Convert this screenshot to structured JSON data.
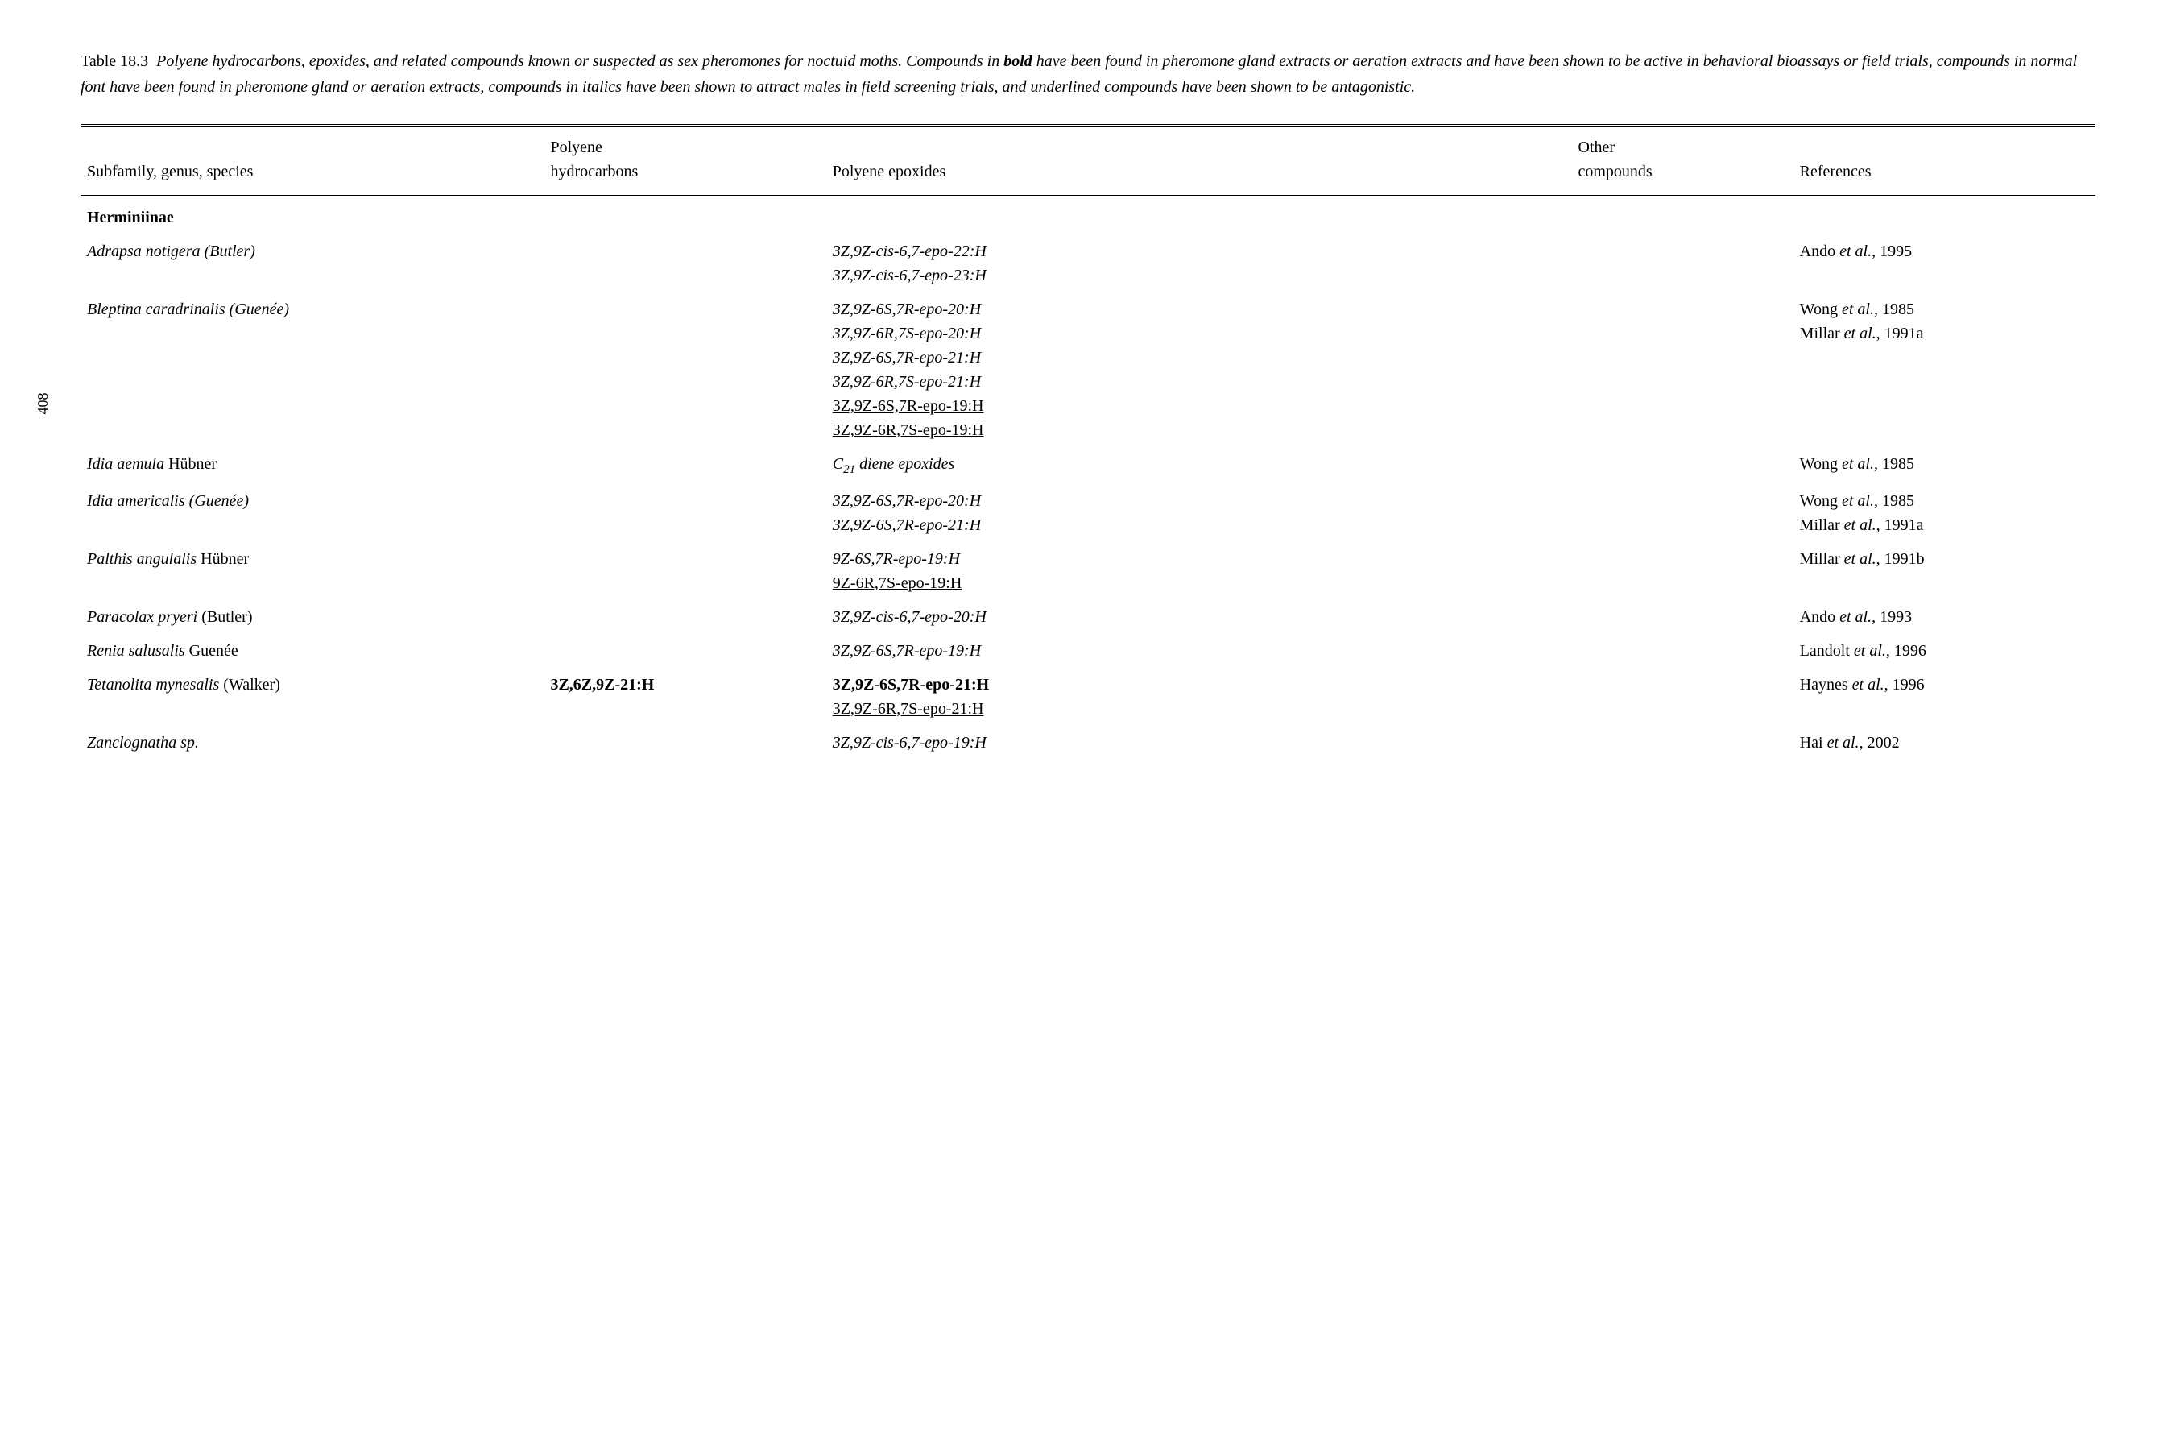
{
  "page_number": "408",
  "caption": {
    "table_label": "Table 18.3",
    "title_italic_1": "Polyene hydrocarbons, epoxides, and related compounds known or suspected as sex pheromones for noctuid moths. Compounds in ",
    "bold_word": "bold",
    "title_italic_2": " have been found in pheromone gland extracts or aeration extracts and have been shown to be active in behavioral bioassays or field trials, compounds in normal font have been found in pheromone gland or aeration extracts, compounds in italics have been shown to attract males in field screening trials, and underlined compounds have been shown to be antagonistic."
  },
  "columns": {
    "col1": "Subfamily, genus, species",
    "col2a": "Polyene",
    "col2b": "hydrocarbons",
    "col3": "Polyene epoxides",
    "col4a": "Other",
    "col4b": "compounds",
    "col5": "References"
  },
  "col_widths": [
    "23%",
    "14%",
    "37%",
    "11%",
    "15%"
  ],
  "subfamily": "Herminiinae",
  "rows": [
    {
      "species_markup": {
        "prefix": "",
        "ital": "Adrapsa notigera",
        "ital2": " (Butler)"
      },
      "hydro": "",
      "epoxides": [
        {
          "text": "3Z,9Z-cis-6,7-epo-22:H",
          "style": "ital"
        },
        {
          "text": "3Z,9Z-cis-6,7-epo-23:H",
          "style": "ital"
        }
      ],
      "other": "",
      "refs": [
        {
          "pre": "Ando ",
          "et": "et al.",
          "post": ", 1995"
        }
      ]
    },
    {
      "species_markup": {
        "prefix": "",
        "ital": "Bleptina caradrinalis",
        "ital2": " (Guenée)"
      },
      "hydro": "",
      "epoxides": [
        {
          "text": "3Z,9Z-6S,7R-epo-20:H",
          "style": "ital"
        },
        {
          "text": "3Z,9Z-6R,7S-epo-20:H",
          "style": "ital"
        },
        {
          "text": "3Z,9Z-6S,7R-epo-21:H",
          "style": "ital"
        },
        {
          "text": "3Z,9Z-6R,7S-epo-21:H",
          "style": "ital"
        },
        {
          "text": "3Z,9Z-6S,7R-epo-19:H",
          "style": "ul"
        },
        {
          "text": "3Z,9Z-6R,7S-epo-19:H",
          "style": "ul"
        }
      ],
      "other": "",
      "refs": [
        {
          "pre": "Wong ",
          "et": "et al.",
          "post": ", 1985"
        },
        {
          "pre": "Millar ",
          "et": "et al.",
          "post": ", 1991a"
        }
      ]
    },
    {
      "species_markup": {
        "prefix": "",
        "ital": "Idia aemula",
        "plain": " Hübner"
      },
      "hydro": "",
      "epoxides": [
        {
          "html": "<span class=\"sub\">C</span><span class=\"sub-num\">21</span><span class=\"ital\"> diene epoxides</span>",
          "raw": true
        }
      ],
      "other": "",
      "refs": [
        {
          "pre": "Wong ",
          "et": "et al.",
          "post": ", 1985"
        }
      ]
    },
    {
      "species_markup": {
        "prefix": "",
        "ital": "Idia americalis",
        "ital2": " (Guenée)"
      },
      "hydro": "",
      "epoxides": [
        {
          "text": "3Z,9Z-6S,7R-epo-20:H",
          "style": "ital"
        },
        {
          "text": "3Z,9Z-6S,7R-epo-21:H",
          "style": "ital"
        }
      ],
      "other": "",
      "refs": [
        {
          "pre": "Wong ",
          "et": "et al.",
          "post": ", 1985"
        },
        {
          "pre": "Millar ",
          "et": "et al.",
          "post": ", 1991a"
        }
      ]
    },
    {
      "species_markup": {
        "prefix": "",
        "ital": "Palthis angulalis",
        "plain": " Hübner"
      },
      "hydro": "",
      "epoxides": [
        {
          "text": "9Z-6S,7R-epo-19:H",
          "style": "ital"
        },
        {
          "text": "9Z-6R,7S-epo-19:H",
          "style": "ul"
        }
      ],
      "other": "",
      "refs": [
        {
          "pre": "Millar ",
          "et": "et al.",
          "post": ", 1991b"
        }
      ]
    },
    {
      "species_markup": {
        "prefix": "",
        "ital": "Paracolax pryeri",
        "plain": " (Butler)"
      },
      "hydro": "",
      "epoxides": [
        {
          "text": "3Z,9Z-cis-6,7-epo-20:H",
          "style": "ital"
        }
      ],
      "other": "",
      "refs": [
        {
          "pre": "Ando ",
          "et": "et al.",
          "post": ", 1993"
        }
      ]
    },
    {
      "species_markup": {
        "prefix": "",
        "ital": "Renia salusalis",
        "plain": " Guenée"
      },
      "hydro": "",
      "epoxides": [
        {
          "text": "3Z,9Z-6S,7R-epo-19:H",
          "style": "ital"
        }
      ],
      "other": "",
      "refs": [
        {
          "pre": "Landolt ",
          "et": "et al.",
          "post": ", 1996"
        }
      ]
    },
    {
      "species_markup": {
        "prefix": "",
        "ital": "Tetanolita mynesalis",
        "plain": " (Walker)"
      },
      "hydro": "3Z,6Z,9Z-21:H",
      "hydro_style": "bold",
      "epoxides": [
        {
          "text": "3Z,9Z-6S,7R-epo-21:H",
          "style": "bold"
        },
        {
          "text": "3Z,9Z-6R,7S-epo-21:H",
          "style": "ul"
        }
      ],
      "other": "",
      "refs": [
        {
          "pre": "Haynes ",
          "et": "et al.",
          "post": ", 1996"
        }
      ]
    },
    {
      "species_markup": {
        "prefix": "",
        "ital": "Zanclognatha sp."
      },
      "hydro": "",
      "epoxides": [
        {
          "text": "3Z,9Z-cis-6,7-epo-19:H",
          "style": "ital"
        }
      ],
      "other": "",
      "refs": [
        {
          "pre": "Hai ",
          "et": "et al.",
          "post": ", 2002"
        }
      ]
    }
  ]
}
